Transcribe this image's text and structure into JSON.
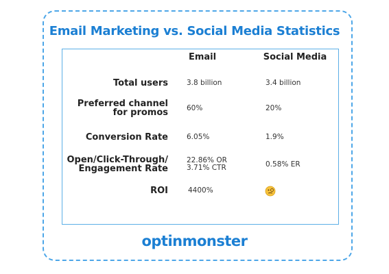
{
  "header": {
    "title": "Email Marketing vs. Social Media Statistics"
  },
  "table": {
    "columns": [
      "Email",
      "Social Media"
    ],
    "rows": [
      {
        "label": [
          "Total users"
        ],
        "email": [
          "3.8 billion"
        ],
        "social": [
          "3.4 billion"
        ]
      },
      {
        "label": [
          "Preferred channel",
          "for promos"
        ],
        "email": [
          "60%"
        ],
        "social": [
          "20%"
        ]
      },
      {
        "label": [
          "Conversion Rate"
        ],
        "email": [
          "6.05%"
        ],
        "social": [
          "1.9%"
        ]
      },
      {
        "label": [
          "Open/Click-Through/",
          "Engagement Rate"
        ],
        "email": [
          "22.86% OR",
          "3.71% CTR"
        ],
        "social": [
          "0.58% ER"
        ]
      },
      {
        "label": [
          "ROI"
        ],
        "email": [
          "4400%"
        ],
        "social": []
      }
    ]
  },
  "footer": {
    "logo": "optinmonster"
  }
}
